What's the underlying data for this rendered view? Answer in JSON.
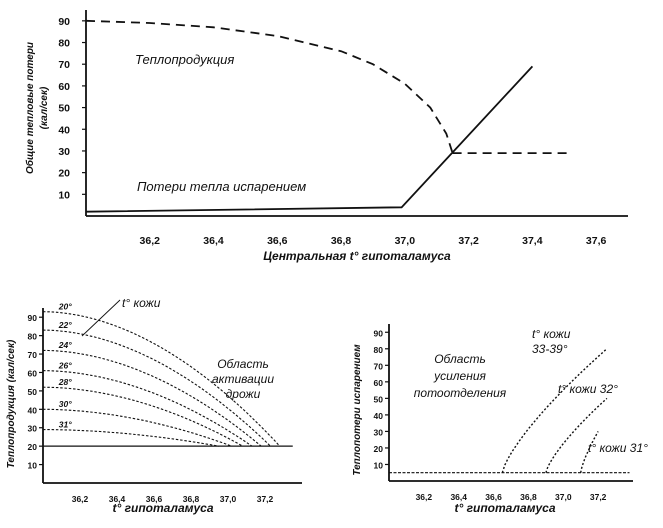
{
  "chart_data": [
    {
      "type": "line",
      "ylabel_line1": "Общие тепловые потери",
      "ylabel_line2": "(кал/сек)",
      "xlabel": "Центральная t° гипоталамуса",
      "x_ticks": [
        "36,2",
        "36,4",
        "36,6",
        "36,8",
        "37,0",
        "37,2",
        "37,4",
        "37,6"
      ],
      "y_ticks": [
        "10",
        "20",
        "30",
        "40",
        "50",
        "60",
        "70",
        "80",
        "90"
      ],
      "xlim": [
        36.0,
        37.7
      ],
      "ylim": [
        0,
        95
      ],
      "series": [
        {
          "name": "Теплопродукция",
          "style": "dashed",
          "x": [
            36.0,
            36.2,
            36.4,
            36.6,
            36.8,
            36.9,
            37.0,
            37.08,
            37.13,
            37.15
          ],
          "y": [
            90,
            89,
            87,
            83,
            76,
            70,
            61,
            50,
            38,
            29
          ]
        },
        {
          "name": "",
          "style": "dashed",
          "x": [
            37.15,
            37.52
          ],
          "y": [
            29,
            29
          ]
        },
        {
          "name": "Потери тепла испарением",
          "style": "solid",
          "x": [
            36.0,
            36.99,
            37.4
          ],
          "y": [
            2,
            4,
            69
          ]
        }
      ]
    },
    {
      "type": "line",
      "ylabel": "Теплопродукция (кал/сек)",
      "xlabel": "t° гипоталамуса",
      "title_annotation": "t° кожи",
      "region_label": [
        "Область",
        "активации",
        "дрожи"
      ],
      "x_ticks": [
        "36,2",
        "36,4",
        "36,6",
        "36,8",
        "37,0",
        "37,2"
      ],
      "y_ticks": [
        "10",
        "20",
        "30",
        "40",
        "50",
        "60",
        "70",
        "80",
        "90"
      ],
      "xlim": [
        36.0,
        37.4
      ],
      "ylim": [
        0,
        95
      ],
      "baseline": 20,
      "series": [
        {
          "name": "20°",
          "y0": 93,
          "x_end": 37.28
        },
        {
          "name": "22°",
          "y0": 83,
          "x_end": 37.23
        },
        {
          "name": "24°",
          "y0": 72,
          "x_end": 37.18
        },
        {
          "name": "26°",
          "y0": 61,
          "x_end": 37.13
        },
        {
          "name": "28°",
          "y0": 52,
          "x_end": 37.08
        },
        {
          "name": "30°",
          "y0": 40,
          "x_end": 37.02
        },
        {
          "name": "31°",
          "y0": 29,
          "x_end": 36.95
        }
      ]
    },
    {
      "type": "line",
      "ylabel": "Теплопотери испарением",
      "xlabel": "t° гипоталамуса",
      "region_label": [
        "Область",
        "усиления",
        "потоотделения"
      ],
      "x_ticks": [
        "36,2",
        "36,4",
        "36,6",
        "36,8",
        "37,0",
        "37,2"
      ],
      "y_ticks": [
        "10",
        "20",
        "30",
        "40",
        "50",
        "60",
        "70",
        "80",
        "90"
      ],
      "xlim": [
        36.0,
        37.4
      ],
      "ylim": [
        0,
        95
      ],
      "baseline": 5,
      "series": [
        {
          "name": "t° кожи 33-39°",
          "label_lines": [
            "t° кожи",
            "33-39°"
          ],
          "x_start": 36.65,
          "x_end": 37.25,
          "y_end": 80
        },
        {
          "name": "t° кожи 32°",
          "label_lines": [
            "t° кожи 32°"
          ],
          "x_start": 36.9,
          "x_end": 37.25,
          "y_end": 50
        },
        {
          "name": "t° кожи 31°",
          "label_lines": [
            "t° кожи 31°"
          ],
          "x_start": 37.1,
          "x_end": 37.2,
          "y_end": 30
        }
      ]
    }
  ]
}
